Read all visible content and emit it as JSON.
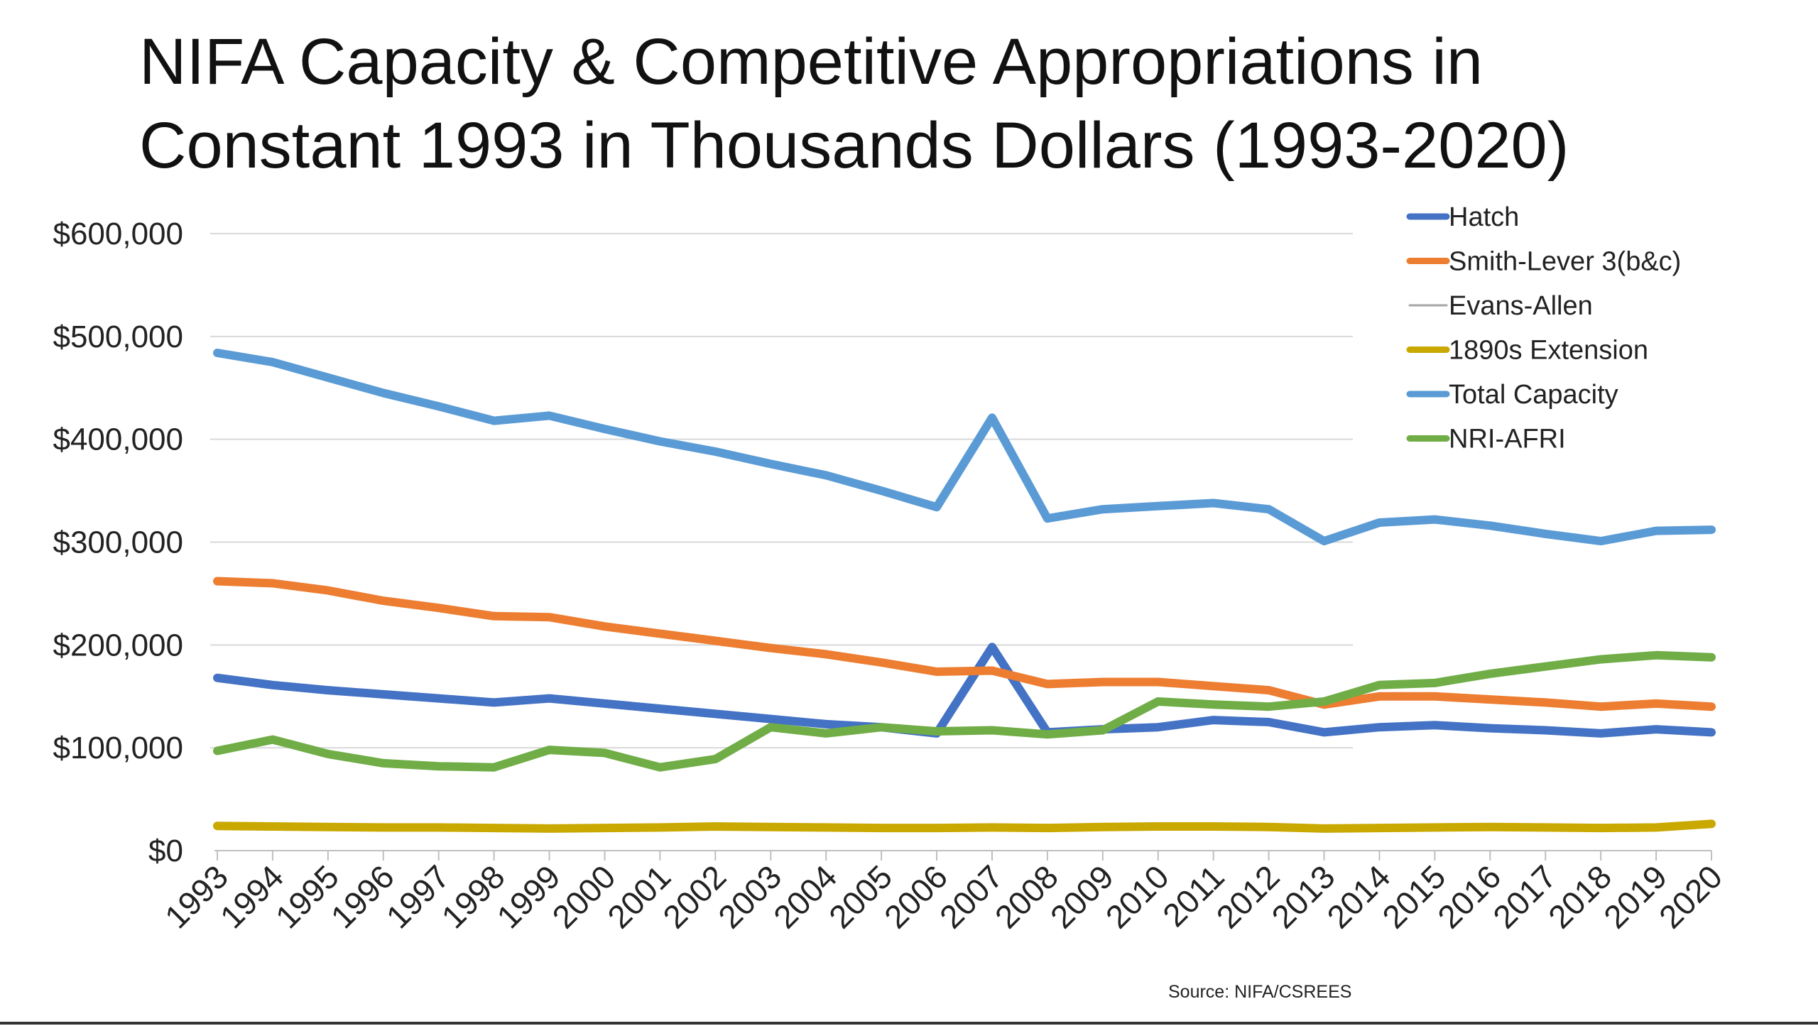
{
  "title_lines": [
    "NIFA Capacity & Competitive Appropriations in",
    "Constant 1993 in Thousands Dollars (1993-2020)"
  ],
  "source": "Source: NIFA/CSREES",
  "chart_data": {
    "type": "line",
    "title": "NIFA Capacity & Competitive Appropriations in Constant 1993 in Thousands Dollars (1993-2020)",
    "xlabel": "",
    "ylabel": "",
    "ylim": [
      0,
      600000
    ],
    "yticks": [
      0,
      100000,
      200000,
      300000,
      400000,
      500000,
      600000
    ],
    "ytick_labels": [
      "$0",
      "$100,000",
      "$200,000",
      "$300,000",
      "$400,000",
      "$500,000",
      "$600,000"
    ],
    "grid": true,
    "legend_position": "top-right",
    "categories": [
      "1993",
      "1994",
      "1995",
      "1996",
      "1997",
      "1998",
      "1999",
      "2000",
      "2001",
      "2002",
      "2003",
      "2004",
      "2005",
      "2006",
      "2007",
      "2008",
      "2009",
      "2010",
      "2011",
      "2012",
      "2013",
      "2014",
      "2015",
      "2016",
      "2017",
      "2018",
      "2019",
      "2020"
    ],
    "series": [
      {
        "name": "Hatch",
        "color": "#4472c4",
        "width": 12,
        "values": [
          168000,
          161000,
          156000,
          152000,
          148000,
          144000,
          148000,
          143000,
          138000,
          133000,
          128000,
          123000,
          120000,
          114000,
          198000,
          115000,
          118000,
          120000,
          127000,
          125000,
          115000,
          120000,
          122000,
          119000,
          117000,
          114000,
          118000,
          115000
        ]
      },
      {
        "name": "Smith-Lever 3(b&c)",
        "color": "#ed7d31",
        "width": 12,
        "values": [
          262000,
          260000,
          253000,
          243000,
          236000,
          228000,
          227000,
          218000,
          211000,
          204000,
          197000,
          191000,
          183000,
          174000,
          175000,
          162000,
          164000,
          164000,
          160000,
          156000,
          142000,
          150000,
          150000,
          147000,
          144000,
          140000,
          143000,
          140000
        ]
      },
      {
        "name": "Evans-Allen",
        "color": "#a5a5a5",
        "width": 3,
        "values": [
          null,
          null,
          null,
          null,
          null,
          null,
          null,
          null,
          null,
          null,
          null,
          null,
          null,
          null,
          null,
          null,
          null,
          null,
          null,
          null,
          null,
          null,
          null,
          null,
          null,
          null,
          null,
          null
        ]
      },
      {
        "name": "1890s Extension",
        "color": "#c9a800",
        "width": 12,
        "values": [
          24000,
          23500,
          23000,
          22500,
          22500,
          22000,
          21500,
          22000,
          22500,
          23500,
          23000,
          22500,
          22000,
          22000,
          22500,
          22000,
          23000,
          23500,
          23500,
          23000,
          21500,
          22000,
          22500,
          23000,
          22500,
          22000,
          22500,
          26000
        ]
      },
      {
        "name": "Total Capacity",
        "color": "#5b9bd5",
        "width": 12,
        "values": [
          484000,
          475000,
          460000,
          445000,
          432000,
          418000,
          423000,
          410000,
          398000,
          388000,
          376000,
          365000,
          350000,
          334000,
          421000,
          323000,
          332000,
          335000,
          338000,
          332000,
          301000,
          319000,
          322000,
          316000,
          308000,
          301000,
          311000,
          312000
        ]
      },
      {
        "name": "NRI-AFRI",
        "color": "#70ad47",
        "width": 12,
        "values": [
          97000,
          108000,
          94000,
          85000,
          82000,
          81000,
          98000,
          95000,
          81000,
          89000,
          120000,
          114000,
          120000,
          116000,
          117000,
          113000,
          117000,
          145000,
          142000,
          140000,
          145000,
          161000,
          163000,
          172000,
          179000,
          186000,
          190000,
          188000
        ]
      }
    ]
  }
}
